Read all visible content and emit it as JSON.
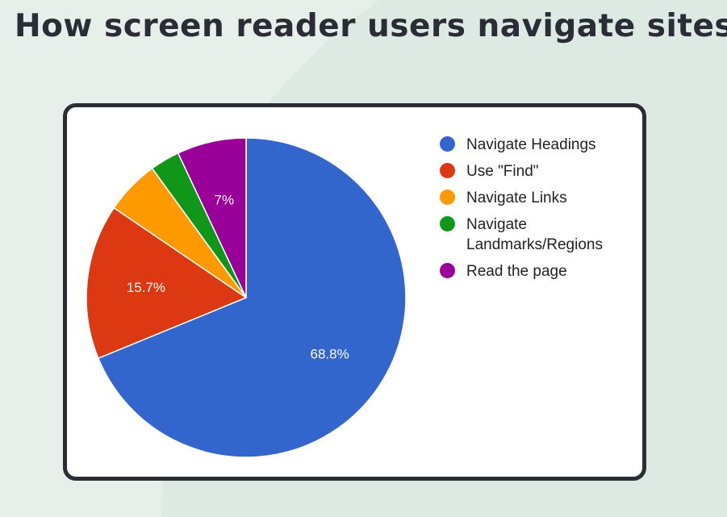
{
  "title": "How screen reader users navigate sites",
  "colors": {
    "background": "#dde9e3",
    "background_light": "#e6efea",
    "card_border": "#2b2d36",
    "title": "#2b2d36"
  },
  "chart_data": {
    "type": "pie",
    "title": "",
    "legend_position": "right",
    "slices": [
      {
        "label": "Navigate Headings",
        "value": 68.8,
        "color": "#3366cc",
        "data_label": "68.8%"
      },
      {
        "label": "Use \"Find\"",
        "value": 15.7,
        "color": "#dc3912",
        "data_label": "15.7%"
      },
      {
        "label": "Navigate Links",
        "value": 5.5,
        "color": "#ff9900",
        "data_label": ""
      },
      {
        "label": "Navigate Landmarks/Regions",
        "value": 3.0,
        "color": "#109618",
        "data_label": ""
      },
      {
        "label": "Read the page",
        "value": 7.0,
        "color": "#990099",
        "data_label": "7%"
      }
    ]
  }
}
